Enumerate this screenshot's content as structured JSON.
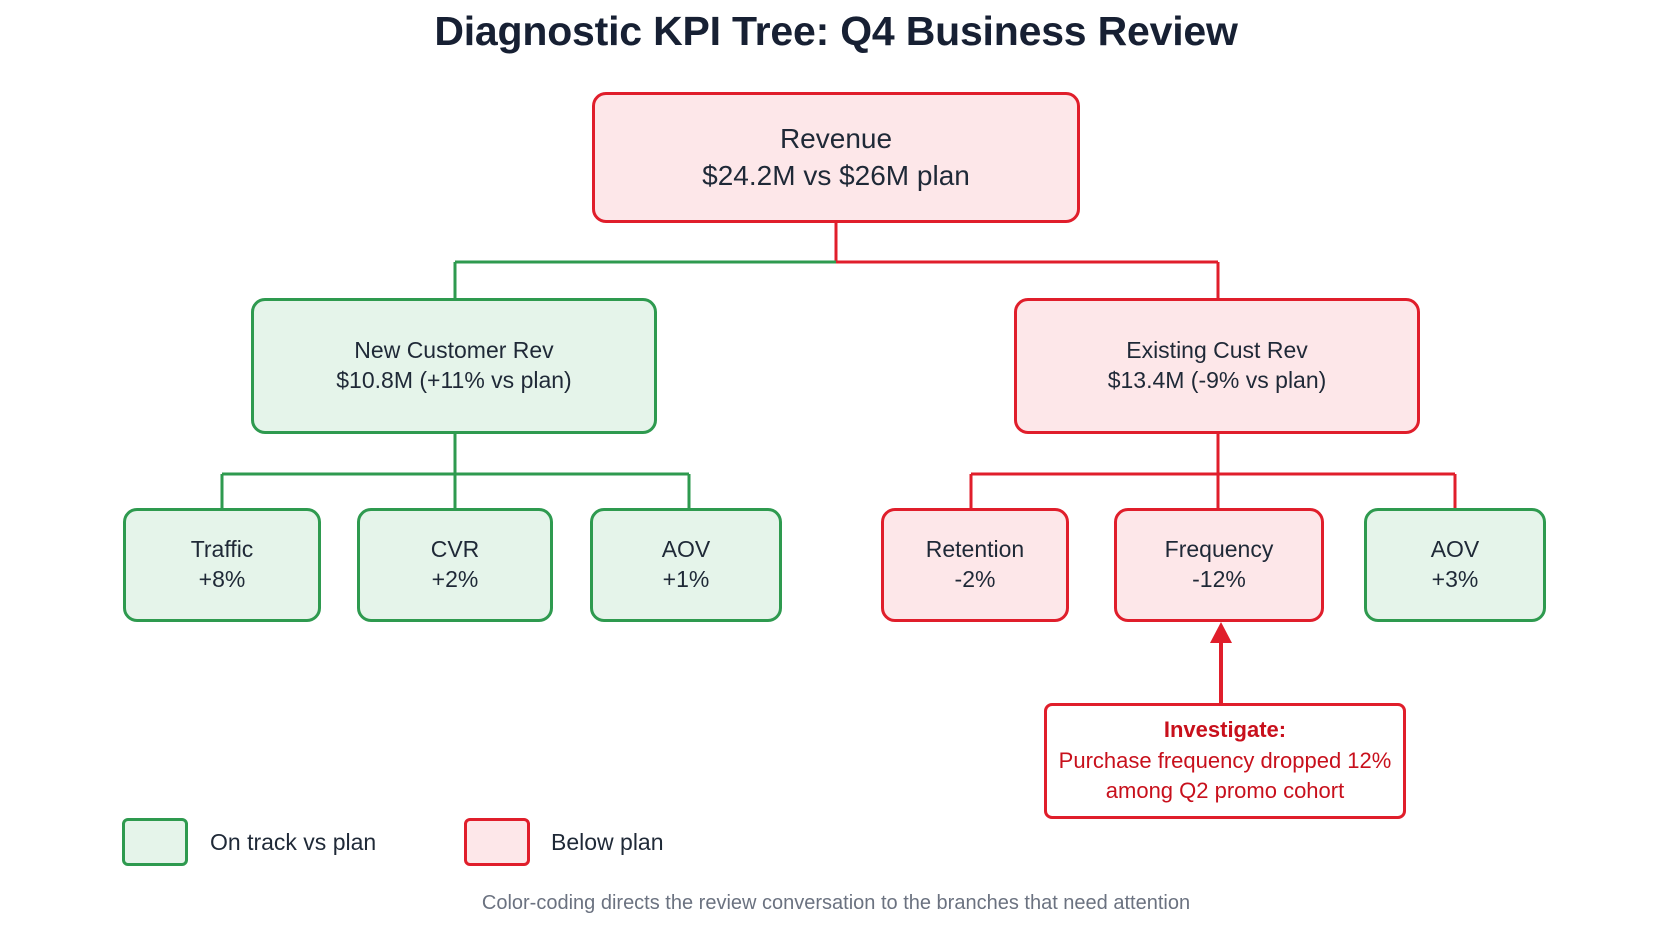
{
  "title": "Diagnostic KPI Tree: Q4 Business Review",
  "colors": {
    "on_track": "#2e9a4f",
    "on_track_fill": "#e5f4ea",
    "below": "#e01e2b",
    "below_fill": "#fde7e9"
  },
  "tree": {
    "root": {
      "label": "Revenue",
      "value": "$24.2M vs $26M plan",
      "status": "below"
    },
    "branches": [
      {
        "label": "New Customer Rev",
        "value": "$10.8M  (+11% vs plan)",
        "status": "on_track",
        "children": [
          {
            "label": "Traffic",
            "value": "+8%",
            "status": "on_track"
          },
          {
            "label": "CVR",
            "value": "+2%",
            "status": "on_track"
          },
          {
            "label": "AOV",
            "value": "+1%",
            "status": "on_track"
          }
        ]
      },
      {
        "label": "Existing Cust Rev",
        "value": "$13.4M  (-9% vs plan)",
        "status": "below",
        "children": [
          {
            "label": "Retention",
            "value": "-2%",
            "status": "below"
          },
          {
            "label": "Frequency",
            "value": "-12%",
            "status": "below"
          },
          {
            "label": "AOV",
            "value": "+3%",
            "status": "on_track"
          }
        ]
      }
    ]
  },
  "callout": {
    "title": "Investigate:",
    "line1": "Purchase frequency dropped 12%",
    "line2": "among Q2 promo cohort"
  },
  "legend": {
    "on_track": "On track vs plan",
    "below": "Below plan"
  },
  "footer": "Color-coding directs the review conversation to the branches that need attention"
}
